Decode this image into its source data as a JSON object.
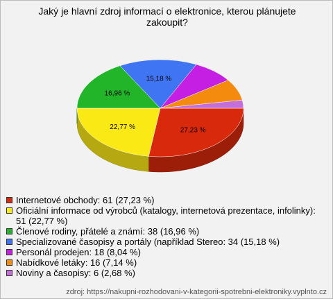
{
  "chart_data": {
    "type": "pie3d",
    "title": "Jaký je hlavní zdroj informací o elektronice, kterou plánujete zakoupit?",
    "categories": [
      "Internetové obchody",
      "Oficiální informace od výrobců (katalogy, internetová prezentace, infolinky)",
      "Členové rodiny, přátelé a známí",
      "Specializované časopisy a portály (například Stereo",
      "Personál prodejen",
      "Nabídkové letáky",
      "Noviny a časopisy"
    ],
    "values": [
      27.23,
      22.77,
      16.96,
      15.18,
      8.04,
      7.14,
      2.68
    ],
    "value_labels": [
      "27,23 %",
      "22,77 %",
      "16,96 %",
      "15,18 %",
      null,
      null,
      null
    ],
    "legend": [
      "Internetové obchody: 61 (27,23 %)",
      "Oficiální informace od výrobců (katalogy, internetová prezentace, infolinky): 51 (22,77 %)",
      "Členové rodiny, přátelé a známí: 38 (16,96 %)",
      "Specializované časopisy a portály (například Stereo: 34 (15,18 %)",
      "Personál prodejen: 18 (8,04 %)",
      "Nabídkové letáky: 16 (7,14 %)",
      "Noviny a časopisy: 6 (2,68 %)"
    ],
    "colors": [
      "#d8290c",
      "#fbe916",
      "#22b429",
      "#3f74f2",
      "#c61fe4",
      "#f48a0e",
      "#c46fd8"
    ],
    "source": "zdroj: https://nakupni-rozhodovani-v-kategorii-spotrebni-elektroniky.vyplnto.cz"
  }
}
